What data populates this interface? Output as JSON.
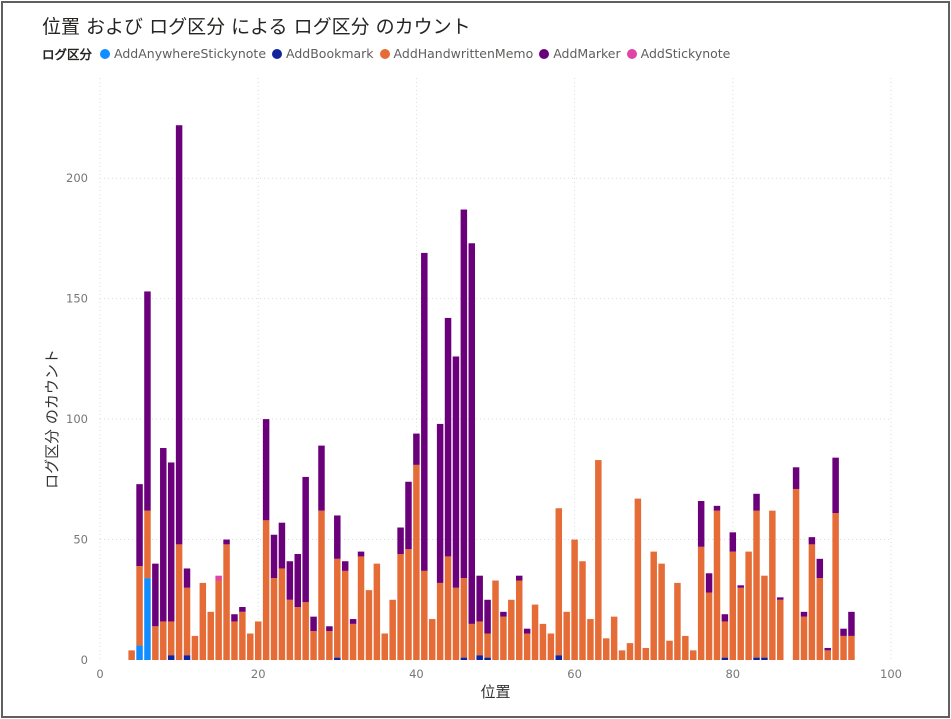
{
  "chart_data": {
    "type": "bar",
    "stacked": true,
    "title": "位置 および ログ区分 による ログ区分 のカウント",
    "xlabel": "位置",
    "ylabel": "ログ区分 のカウント",
    "xlim": [
      0,
      100
    ],
    "ylim": [
      0,
      225
    ],
    "x_ticks": [
      0,
      20,
      40,
      60,
      80,
      100
    ],
    "y_ticks": [
      0,
      50,
      100,
      150,
      200
    ],
    "grid": true,
    "legend_title": "ログ区分",
    "legend_position": "top-left",
    "series": [
      {
        "name": "AddAnywhereStickynote",
        "color": "#118DFF"
      },
      {
        "name": "AddBookmark",
        "color": "#12239E"
      },
      {
        "name": "AddHandwrittenMemo",
        "color": "#E66C37"
      },
      {
        "name": "AddMarker",
        "color": "#6B007B"
      },
      {
        "name": "AddStickynote",
        "color": "#E044A7"
      }
    ],
    "x": [
      4,
      5,
      6,
      7,
      8,
      9,
      10,
      11,
      12,
      13,
      14,
      15,
      16,
      17,
      18,
      19,
      20,
      21,
      22,
      23,
      24,
      25,
      26,
      27,
      28,
      29,
      30,
      31,
      32,
      33,
      34,
      35,
      36,
      37,
      38,
      39,
      40,
      41,
      42,
      43,
      44,
      45,
      46,
      47,
      48,
      49,
      50,
      51,
      52,
      53,
      54,
      55,
      56,
      57,
      58,
      59,
      60,
      61,
      62,
      63,
      64,
      65,
      66,
      67,
      68,
      69,
      70,
      71,
      72,
      73,
      74,
      75,
      76,
      77,
      78,
      79,
      80,
      81,
      82,
      83,
      84,
      85,
      86,
      87,
      88,
      89,
      90,
      91,
      92,
      93,
      94,
      95
    ],
    "values": {
      "AddAnywhereStickynote": [
        0,
        6,
        34,
        0,
        0,
        0,
        0,
        0,
        0,
        0,
        0,
        0,
        0,
        0,
        0,
        0,
        0,
        0,
        0,
        0,
        0,
        0,
        0,
        0,
        0,
        0,
        0,
        0,
        0,
        0,
        0,
        0,
        0,
        0,
        0,
        0,
        0,
        0,
        0,
        0,
        0,
        0,
        0,
        0,
        0,
        0,
        0,
        0,
        0,
        0,
        0,
        0,
        0,
        0,
        0,
        0,
        0,
        0,
        0,
        0,
        0,
        0,
        0,
        0,
        0,
        0,
        0,
        0,
        0,
        0,
        0,
        0,
        0,
        0,
        0,
        0,
        0,
        0,
        0,
        0,
        0,
        0,
        0,
        0,
        0,
        0,
        0,
        0,
        0,
        0,
        0,
        0
      ],
      "AddBookmark": [
        0,
        0,
        0,
        0,
        0,
        2,
        0,
        2,
        0,
        0,
        0,
        0,
        0,
        0,
        0,
        0,
        0,
        0,
        0,
        0,
        0,
        0,
        0,
        0,
        0,
        0,
        1,
        0,
        0,
        0,
        0,
        0,
        0,
        0,
        0,
        0,
        0,
        0,
        0,
        0,
        0,
        0,
        1,
        0,
        2,
        1,
        0,
        0,
        0,
        0,
        0,
        0,
        0,
        0,
        2,
        0,
        0,
        0,
        0,
        0,
        0,
        0,
        0,
        0,
        0,
        0,
        0,
        0,
        0,
        0,
        0,
        0,
        0,
        0,
        0,
        1,
        0,
        0,
        0,
        1,
        1,
        0,
        0,
        0,
        0,
        0,
        0,
        0,
        0,
        0,
        0,
        0
      ],
      "AddHandwrittenMemo": [
        4,
        33,
        28,
        14,
        16,
        14,
        48,
        28,
        10,
        32,
        20,
        33,
        48,
        16,
        20,
        11,
        16,
        58,
        34,
        38,
        25,
        22,
        24,
        12,
        62,
        12,
        41,
        37,
        15,
        43,
        29,
        40,
        11,
        25,
        44,
        46,
        81,
        37,
        17,
        32,
        43,
        30,
        33,
        15,
        14,
        10,
        33,
        18,
        25,
        33,
        11,
        23,
        15,
        11,
        61,
        20,
        50,
        41,
        17,
        83,
        9,
        18,
        4,
        7,
        67,
        5,
        45,
        40,
        8,
        32,
        10,
        4,
        47,
        28,
        62,
        15,
        45,
        30,
        45,
        61,
        34,
        62,
        25,
        0,
        71,
        18,
        48,
        34,
        4,
        61,
        10,
        10
      ],
      "AddMarker": [
        0,
        34,
        91,
        26,
        72,
        66,
        174,
        8,
        0,
        0,
        0,
        0,
        2,
        3,
        2,
        0,
        0,
        42,
        18,
        19,
        16,
        22,
        52,
        6,
        27,
        2,
        18,
        4,
        2,
        2,
        0,
        0,
        0,
        0,
        11,
        28,
        13,
        132,
        0,
        66,
        99,
        96,
        153,
        158,
        19,
        14,
        0,
        2,
        0,
        2,
        2,
        0,
        0,
        0,
        0,
        0,
        0,
        0,
        0,
        0,
        0,
        0,
        0,
        0,
        0,
        0,
        0,
        0,
        0,
        0,
        0,
        0,
        19,
        8,
        2,
        3,
        8,
        1,
        0,
        7,
        0,
        0,
        1,
        0,
        9,
        2,
        3,
        8,
        1,
        23,
        3,
        10
      ],
      "AddStickynote": [
        0,
        0,
        0,
        0,
        0,
        0,
        0,
        0,
        0,
        0,
        0,
        2,
        0,
        0,
        0,
        0,
        0,
        0,
        0,
        0,
        0,
        0,
        0,
        0,
        0,
        0,
        0,
        0,
        0,
        0,
        0,
        0,
        0,
        0,
        0,
        0,
        0,
        0,
        0,
        0,
        0,
        0,
        0,
        0,
        0,
        0,
        0,
        0,
        0,
        0,
        0,
        0,
        0,
        0,
        0,
        0,
        0,
        0,
        0,
        0,
        0,
        0,
        0,
        0,
        0,
        0,
        0,
        0,
        0,
        0,
        0,
        0,
        0,
        0,
        0,
        0,
        0,
        0,
        0,
        0,
        0,
        0,
        0,
        0,
        0,
        0,
        0,
        0,
        0,
        0,
        0,
        0
      ]
    }
  }
}
